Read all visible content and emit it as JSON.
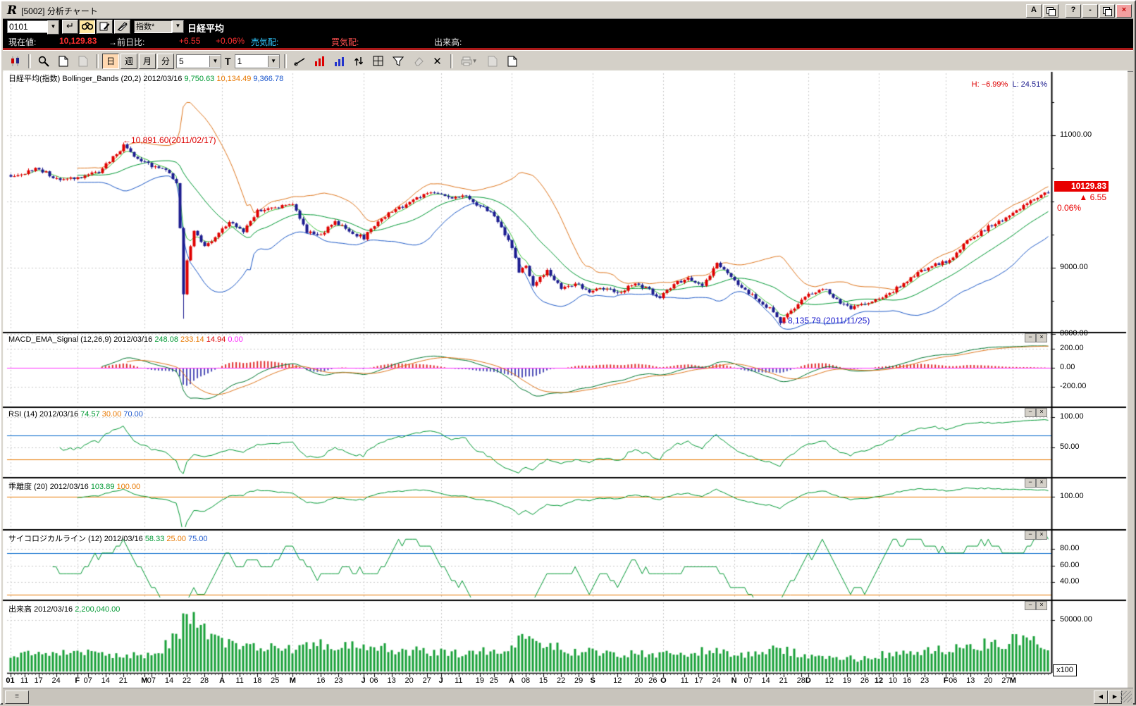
{
  "window": {
    "title": "[5002] 分析チャート",
    "controls": {
      "font": "A",
      "help": "?",
      "minimize": "-",
      "close": "×"
    }
  },
  "quote_bar": {
    "code": "0101",
    "category": "指数*",
    "name": "日経平均",
    "enter_glyph": "↵",
    "row2": {
      "label_current": "現在値:",
      "current": "10,129.83",
      "label_change": "→前日比:",
      "change": "+6.55",
      "change_pct": "+0.06%",
      "label_ask": "売気配:",
      "ask": "",
      "label_bid": "買気配:",
      "bid": "",
      "label_volume": "出来高:",
      "volume": ""
    }
  },
  "toolbar": {
    "period_day": "日",
    "period_week": "週",
    "period_month": "月",
    "period_min": "分",
    "interval_value": "5",
    "t_label": "T",
    "count_value": "1",
    "clear_glyph": "✕"
  },
  "panels": {
    "main": {
      "name": "日経平均(指数)",
      "indicator": "Bollinger_Bands (20,2)",
      "date": "2012/03/16",
      "mid": "9,750.63",
      "upper": "10,134.49",
      "lower": "9,366.78",
      "hl_high": "H: −6.99%",
      "hl_low": "L: 24.51%",
      "ann_high": "←10,891.60(2011/02/17)",
      "ann_low": "←8,135.79 (2011/11/25)",
      "price_box": "10129.83",
      "change_arrow": "▲",
      "change": "6.55",
      "change_pct": "0.06%"
    },
    "macd": {
      "title": "MACD_EMA_Signal (12,26,9)",
      "date": "2012/03/16",
      "v1": "248.08",
      "v2": "233.14",
      "v3": "14.94",
      "v4": "0.00"
    },
    "rsi": {
      "title": "RSI (14)",
      "date": "2012/03/16",
      "v1": "74.57",
      "v2": "30.00",
      "v3": "70.00"
    },
    "kairi": {
      "title": "乖離度 (20)",
      "date": "2012/03/16",
      "v1": "103.89",
      "v2": "100.00"
    },
    "psych": {
      "title": "サイコロジカルライン (12)",
      "date": "2012/03/16",
      "v1": "58.33",
      "v2": "25.00",
      "v3": "75.00"
    },
    "volume": {
      "title": "出来高",
      "date": "2012/03/16",
      "v1": "2,200,040.00",
      "mult": "x100"
    },
    "mini_minimize": "−",
    "mini_close": "×"
  },
  "colors": {
    "up": "#e00000",
    "down": "#1c1c8f",
    "boll_upper": "#e07820",
    "boll_mid": "#009933",
    "ema_fast": "#3cc43c",
    "boll_lower": "#1e5ac8",
    "macd_line": "#007830",
    "signal_line": "#e07820",
    "hist_pos": "#e03030",
    "hist_neg": "#5050b8",
    "zero_line": "#ff30ff",
    "indicator": "#009933",
    "volume_bar": "#18a038",
    "grid": "#c9c9c9",
    "hline_blue": "#0066cc",
    "hline_orange": "#e87800",
    "price_box_bg": "#e80000",
    "axis": "#000000"
  },
  "chart_data": {
    "type": "candlestick",
    "title": "日経平均(指数) Bollinger_Bands (20,2)",
    "days": 295,
    "ylim_main": [
      8000,
      11500
    ],
    "price_anchors": [
      [
        0,
        10350
      ],
      [
        8,
        10500
      ],
      [
        14,
        10300
      ],
      [
        25,
        10450
      ],
      [
        31,
        10780
      ],
      [
        32,
        10860
      ],
      [
        36,
        10620
      ],
      [
        45,
        10430
      ],
      [
        47,
        10250
      ],
      [
        48,
        9620
      ],
      [
        49,
        8605
      ],
      [
        50,
        9100
      ],
      [
        52,
        9550
      ],
      [
        55,
        9350
      ],
      [
        58,
        9450
      ],
      [
        62,
        9690
      ],
      [
        66,
        9550
      ],
      [
        70,
        9850
      ],
      [
        75,
        9900
      ],
      [
        80,
        9950
      ],
      [
        84,
        9550
      ],
      [
        88,
        9500
      ],
      [
        92,
        9700
      ],
      [
        96,
        9550
      ],
      [
        100,
        9450
      ],
      [
        104,
        9700
      ],
      [
        108,
        9850
      ],
      [
        112,
        9950
      ],
      [
        116,
        10080
      ],
      [
        120,
        10150
      ],
      [
        124,
        10050
      ],
      [
        128,
        10100
      ],
      [
        132,
        9950
      ],
      [
        136,
        9850
      ],
      [
        140,
        9500
      ],
      [
        142,
        9300
      ],
      [
        144,
        8950
      ],
      [
        146,
        9050
      ],
      [
        148,
        8750
      ],
      [
        152,
        8950
      ],
      [
        156,
        8700
      ],
      [
        160,
        8750
      ],
      [
        164,
        8650
      ],
      [
        168,
        8700
      ],
      [
        172,
        8600
      ],
      [
        176,
        8750
      ],
      [
        180,
        8700
      ],
      [
        184,
        8550
      ],
      [
        188,
        8750
      ],
      [
        192,
        8850
      ],
      [
        196,
        8750
      ],
      [
        200,
        9050
      ],
      [
        204,
        8850
      ],
      [
        208,
        8650
      ],
      [
        212,
        8500
      ],
      [
        216,
        8350
      ],
      [
        218,
        8165
      ],
      [
        222,
        8400
      ],
      [
        226,
        8600
      ],
      [
        230,
        8700
      ],
      [
        234,
        8500
      ],
      [
        238,
        8400
      ],
      [
        242,
        8450
      ],
      [
        246,
        8550
      ],
      [
        250,
        8650
      ],
      [
        254,
        8800
      ],
      [
        258,
        8950
      ],
      [
        262,
        9050
      ],
      [
        266,
        9100
      ],
      [
        270,
        9350
      ],
      [
        274,
        9500
      ],
      [
        278,
        9650
      ],
      [
        282,
        9750
      ],
      [
        286,
        9900
      ],
      [
        290,
        10050
      ],
      [
        294,
        10130
      ]
    ],
    "volume_anchors": [
      [
        0,
        16000
      ],
      [
        20,
        17000
      ],
      [
        40,
        15000
      ],
      [
        48,
        34000
      ],
      [
        49,
        56000
      ],
      [
        51,
        50000
      ],
      [
        53,
        44000
      ],
      [
        56,
        36000
      ],
      [
        60,
        28000
      ],
      [
        70,
        23000
      ],
      [
        80,
        21000
      ],
      [
        90,
        26000
      ],
      [
        100,
        24000
      ],
      [
        110,
        20000
      ],
      [
        120,
        18000
      ],
      [
        130,
        17000
      ],
      [
        140,
        22000
      ],
      [
        144,
        30000
      ],
      [
        150,
        25000
      ],
      [
        160,
        19000
      ],
      [
        170,
        17000
      ],
      [
        180,
        16000
      ],
      [
        190,
        18000
      ],
      [
        200,
        19000
      ],
      [
        205,
        15000
      ],
      [
        210,
        16000
      ],
      [
        218,
        21000
      ],
      [
        225,
        15000
      ],
      [
        230,
        14000
      ],
      [
        235,
        13000
      ],
      [
        240,
        12000
      ],
      [
        245,
        15000
      ],
      [
        250,
        17000
      ],
      [
        255,
        18000
      ],
      [
        260,
        19000
      ],
      [
        265,
        21000
      ],
      [
        270,
        23000
      ],
      [
        275,
        25000
      ],
      [
        280,
        27000
      ],
      [
        285,
        29000
      ],
      [
        288,
        31000
      ],
      [
        291,
        27000
      ],
      [
        294,
        22000
      ]
    ],
    "specials": {
      "peak_idx": 32,
      "peak_high": 10891,
      "crash_idx": 49,
      "crash_low": 8230,
      "trough_idx": 218,
      "trough_low": 8135,
      "final_close": 10129.83
    },
    "month_starts": [
      0,
      19,
      38,
      60,
      80,
      100,
      122,
      142,
      165,
      185,
      205,
      226,
      246,
      265,
      284
    ],
    "x_labels": [
      [
        0,
        "01",
        1
      ],
      [
        4,
        "11",
        0
      ],
      [
        8,
        "17",
        0
      ],
      [
        13,
        "24",
        0
      ],
      [
        19,
        "F",
        1
      ],
      [
        22,
        "07",
        0
      ],
      [
        27,
        "14",
        0
      ],
      [
        32,
        "21",
        0
      ],
      [
        38,
        "M",
        1
      ],
      [
        40,
        "07",
        0
      ],
      [
        45,
        "14",
        0
      ],
      [
        50,
        "22",
        0
      ],
      [
        55,
        "28",
        0
      ],
      [
        60,
        "A",
        1
      ],
      [
        65,
        "11",
        0
      ],
      [
        70,
        "18",
        0
      ],
      [
        75,
        "25",
        0
      ],
      [
        80,
        "M",
        1
      ],
      [
        88,
        "16",
        0
      ],
      [
        93,
        "23",
        0
      ],
      [
        100,
        "J",
        1
      ],
      [
        103,
        "06",
        0
      ],
      [
        108,
        "13",
        0
      ],
      [
        113,
        "20",
        0
      ],
      [
        118,
        "27",
        0
      ],
      [
        122,
        "J",
        1
      ],
      [
        127,
        "11",
        0
      ],
      [
        133,
        "19",
        0
      ],
      [
        137,
        "25",
        0
      ],
      [
        142,
        "A",
        1
      ],
      [
        146,
        "08",
        0
      ],
      [
        151,
        "15",
        0
      ],
      [
        156,
        "22",
        0
      ],
      [
        161,
        "29",
        0
      ],
      [
        165,
        "S",
        1
      ],
      [
        172,
        "12",
        0
      ],
      [
        178,
        "20",
        0
      ],
      [
        182,
        "26",
        0
      ],
      [
        185,
        "O",
        1
      ],
      [
        191,
        "11",
        0
      ],
      [
        195,
        "17",
        0
      ],
      [
        200,
        "24",
        0
      ],
      [
        205,
        "N",
        1
      ],
      [
        209,
        "07",
        0
      ],
      [
        214,
        "14",
        0
      ],
      [
        219,
        "21",
        0
      ],
      [
        224,
        "28",
        0
      ],
      [
        226,
        "D",
        1
      ],
      [
        232,
        "12",
        0
      ],
      [
        237,
        "19",
        0
      ],
      [
        242,
        "26",
        0
      ],
      [
        246,
        "12",
        1
      ],
      [
        250,
        "10",
        0
      ],
      [
        254,
        "16",
        0
      ],
      [
        259,
        "23",
        0
      ],
      [
        265,
        "F",
        1
      ],
      [
        267,
        "06",
        0
      ],
      [
        272,
        "13",
        0
      ],
      [
        277,
        "20",
        0
      ],
      [
        282,
        "27",
        0
      ],
      [
        284,
        "M",
        1
      ]
    ],
    "axes": {
      "main": {
        "ticks": [
          [
            11000,
            "11000.00"
          ],
          [
            9000,
            "9000.00"
          ],
          [
            8000,
            "8000.00"
          ]
        ],
        "minor": [
          11500,
          10500,
          10000,
          9500,
          8500
        ],
        "grid": [
          11000,
          10000,
          9000,
          8000
        ]
      },
      "macd": {
        "ticks": [
          [
            200,
            "200.00"
          ],
          [
            0,
            "0.00"
          ],
          [
            -200,
            "-200.00"
          ]
        ]
      },
      "rsi": {
        "ticks": [
          [
            100,
            "100.00"
          ],
          [
            50,
            "50.00"
          ]
        ],
        "hlines": [
          [
            70,
            "blue"
          ],
          [
            30,
            "orange"
          ]
        ]
      },
      "kairi": {
        "ticks": [
          [
            100,
            "100.00"
          ]
        ],
        "hlines": [
          [
            100,
            "orange"
          ]
        ]
      },
      "psych": {
        "ticks": [
          [
            80,
            "80.00"
          ],
          [
            60,
            "60.00"
          ],
          [
            40,
            "40.00"
          ]
        ],
        "hlines": [
          [
            75,
            "blue"
          ],
          [
            25,
            "orange"
          ]
        ]
      },
      "vol": {
        "ticks": [
          [
            50000,
            "50000.00"
          ]
        ]
      }
    },
    "indicators": {
      "bollinger": [
        20,
        2
      ],
      "ema_fast": 5,
      "macd": [
        12,
        26,
        9
      ],
      "rsi": 14,
      "kairi": 20,
      "psych": 12
    }
  }
}
